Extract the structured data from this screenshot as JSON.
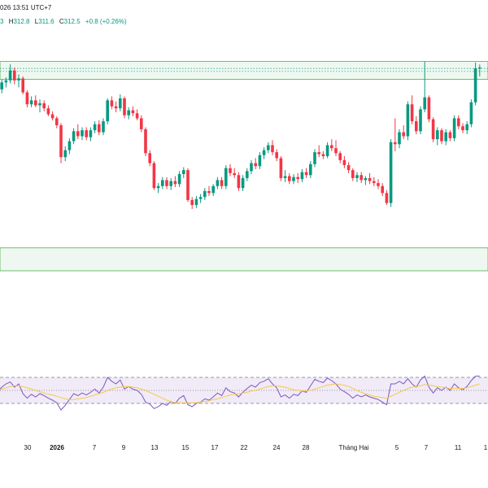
{
  "header": {
    "datetime": "026 13:51 UTC+7",
    "ohlc": [
      {
        "label": "",
        "value": "3"
      },
      {
        "label": "H",
        "value": "312.8"
      },
      {
        "label": "L",
        "value": "311.6"
      },
      {
        "label": "C",
        "value": "312.5"
      }
    ],
    "change": "+0.8 (+0.26%)"
  },
  "colors": {
    "up": "#089981",
    "down": "#f23645",
    "rsi_line": "#7e57c2",
    "rsi_ma": "#f7c948",
    "rsi_band": "#ede7f6",
    "zone_fill": "#e8f5e9",
    "zone_border": "#4caf50"
  },
  "chart_data": [
    {
      "type": "candlestick",
      "y_range": [
        285,
        316
      ],
      "zones": [
        {
          "from": 311.3,
          "to": 313.1
        },
        {
          "from": 292.1,
          "to": 294.4
        }
      ],
      "reference_lines": [
        312.1,
        312.4
      ],
      "x_ticks": [
        "30",
        "2026",
        "7",
        "9",
        "13",
        "15",
        "17",
        "22",
        "24",
        "28",
        "Tháng Hai",
        "5",
        "7",
        "11",
        "1"
      ],
      "candles": [
        [
          309.8,
          310.6,
          309.2,
          310.3
        ],
        [
          310.3,
          311.3,
          309.9,
          311.0
        ],
        [
          311.0,
          311.5,
          310.5,
          311.2
        ],
        [
          311.2,
          312.8,
          310.9,
          312.2
        ],
        [
          312.2,
          312.5,
          310.8,
          311.2
        ],
        [
          311.2,
          311.8,
          310.5,
          311.4
        ],
        [
          311.4,
          311.6,
          309.8,
          310.0
        ],
        [
          310.0,
          310.2,
          308.5,
          308.8
        ],
        [
          308.8,
          309.6,
          308.5,
          309.2
        ],
        [
          309.2,
          309.7,
          308.5,
          308.7
        ],
        [
          308.7,
          309.3,
          308.0,
          308.9
        ],
        [
          308.9,
          309.2,
          308.1,
          308.4
        ],
        [
          308.4,
          308.7,
          307.6,
          307.8
        ],
        [
          307.8,
          308.1,
          307.2,
          307.4
        ],
        [
          307.4,
          307.6,
          306.4,
          306.7
        ],
        [
          306.7,
          306.9,
          302.9,
          303.5
        ],
        [
          303.5,
          304.6,
          303.1,
          304.2
        ],
        [
          304.2,
          305.4,
          303.8,
          305.1
        ],
        [
          305.1,
          306.4,
          304.8,
          306.1
        ],
        [
          306.1,
          306.8,
          305.3,
          305.6
        ],
        [
          305.6,
          306.5,
          305.2,
          306.2
        ],
        [
          306.2,
          306.5,
          305.2,
          305.5
        ],
        [
          305.5,
          306.5,
          305.1,
          306.2
        ],
        [
          306.2,
          307.1,
          305.9,
          306.8
        ],
        [
          306.8,
          307.2,
          305.7,
          306.0
        ],
        [
          306.0,
          307.4,
          305.7,
          307.1
        ],
        [
          307.1,
          309.4,
          306.8,
          309.2
        ],
        [
          309.2,
          309.6,
          308.3,
          308.6
        ],
        [
          308.6,
          309.1,
          308.0,
          308.4
        ],
        [
          308.4,
          309.8,
          308.1,
          309.4
        ],
        [
          309.4,
          309.6,
          307.4,
          307.7
        ],
        [
          307.7,
          308.5,
          307.3,
          308.2
        ],
        [
          308.2,
          308.6,
          307.6,
          307.9
        ],
        [
          307.9,
          308.3,
          307.2,
          307.4
        ],
        [
          307.4,
          307.7,
          306.0,
          306.3
        ],
        [
          306.3,
          306.5,
          303.6,
          303.9
        ],
        [
          303.9,
          304.2,
          302.6,
          302.9
        ],
        [
          302.9,
          303.1,
          300.2,
          300.4
        ],
        [
          300.4,
          300.9,
          299.9,
          300.6
        ],
        [
          300.6,
          301.5,
          300.3,
          301.2
        ],
        [
          301.2,
          301.5,
          300.3,
          300.6
        ],
        [
          300.6,
          301.4,
          300.2,
          301.1
        ],
        [
          301.1,
          301.6,
          300.5,
          300.8
        ],
        [
          300.8,
          302.1,
          300.5,
          301.8
        ],
        [
          301.8,
          302.5,
          301.4,
          302.2
        ],
        [
          302.2,
          302.4,
          299.0,
          299.2
        ],
        [
          299.2,
          299.5,
          298.3,
          298.7
        ],
        [
          298.7,
          299.6,
          298.4,
          299.3
        ],
        [
          299.3,
          299.8,
          298.9,
          299.5
        ],
        [
          299.5,
          300.4,
          299.2,
          300.1
        ],
        [
          300.1,
          300.6,
          299.6,
          299.9
        ],
        [
          299.9,
          300.8,
          299.6,
          300.6
        ],
        [
          300.6,
          301.5,
          300.3,
          301.2
        ],
        [
          301.2,
          301.5,
          300.3,
          300.6
        ],
        [
          300.6,
          302.7,
          300.3,
          302.4
        ],
        [
          302.4,
          302.8,
          301.6,
          301.9
        ],
        [
          301.9,
          302.4,
          301.4,
          301.7
        ],
        [
          301.7,
          302.0,
          300.1,
          300.4
        ],
        [
          300.4,
          301.7,
          300.1,
          301.4
        ],
        [
          301.4,
          302.4,
          301.1,
          302.1
        ],
        [
          302.1,
          303.2,
          301.8,
          302.9
        ],
        [
          302.9,
          303.4,
          302.3,
          302.6
        ],
        [
          302.6,
          304.0,
          302.3,
          303.7
        ],
        [
          303.7,
          304.5,
          303.3,
          304.2
        ],
        [
          304.2,
          305.0,
          303.9,
          304.7
        ],
        [
          304.7,
          305.2,
          303.7,
          304.0
        ],
        [
          304.0,
          304.3,
          303.1,
          303.4
        ],
        [
          303.4,
          303.6,
          301.1,
          301.4
        ],
        [
          301.4,
          302.2,
          301.0,
          301.6
        ],
        [
          301.6,
          301.9,
          300.8,
          301.1
        ],
        [
          301.1,
          301.8,
          300.8,
          301.5
        ],
        [
          301.5,
          301.9,
          300.9,
          301.3
        ],
        [
          301.3,
          302.3,
          301.0,
          302.0
        ],
        [
          302.0,
          302.4,
          301.4,
          301.7
        ],
        [
          301.7,
          303.1,
          301.4,
          302.8
        ],
        [
          302.8,
          304.3,
          302.5,
          304.0
        ],
        [
          304.0,
          304.7,
          303.5,
          303.8
        ],
        [
          303.8,
          304.1,
          303.3,
          303.6
        ],
        [
          303.6,
          305.0,
          303.4,
          304.7
        ],
        [
          304.7,
          305.3,
          304.1,
          304.4
        ],
        [
          304.4,
          305.2,
          303.6,
          303.9
        ],
        [
          303.9,
          304.1,
          302.9,
          303.2
        ],
        [
          303.2,
          303.6,
          302.4,
          302.7
        ],
        [
          302.7,
          303.0,
          301.9,
          302.2
        ],
        [
          302.2,
          302.4,
          301.1,
          301.4
        ],
        [
          301.4,
          302.0,
          301.0,
          301.7
        ],
        [
          301.7,
          302.0,
          300.9,
          301.2
        ],
        [
          301.2,
          301.6,
          300.7,
          301.4
        ],
        [
          301.4,
          301.9,
          300.8,
          301.1
        ],
        [
          301.1,
          301.5,
          300.6,
          300.9
        ],
        [
          300.9,
          301.3,
          300.3,
          300.6
        ],
        [
          300.6,
          300.9,
          299.6,
          299.9
        ],
        [
          299.9,
          300.2,
          298.7,
          298.9
        ],
        [
          298.9,
          305.3,
          298.5,
          305.0
        ],
        [
          305.0,
          307.4,
          304.1,
          304.8
        ],
        [
          304.8,
          306.3,
          304.4,
          306.0
        ],
        [
          306.0,
          306.7,
          305.3,
          305.6
        ],
        [
          305.6,
          309.1,
          305.2,
          308.8
        ],
        [
          308.8,
          309.7,
          306.8,
          307.1
        ],
        [
          307.1,
          307.6,
          305.8,
          306.1
        ],
        [
          306.1,
          308.6,
          305.8,
          308.3
        ],
        [
          308.3,
          313.1,
          308.0,
          309.5
        ],
        [
          309.5,
          309.7,
          307.0,
          307.3
        ],
        [
          307.3,
          307.5,
          305.0,
          305.3
        ],
        [
          305.3,
          306.5,
          304.7,
          306.2
        ],
        [
          306.2,
          306.4,
          304.8,
          305.1
        ],
        [
          305.1,
          306.3,
          304.7,
          306.0
        ],
        [
          306.0,
          306.2,
          305.1,
          305.4
        ],
        [
          305.4,
          307.7,
          305.1,
          307.4
        ],
        [
          307.4,
          307.7,
          306.3,
          306.6
        ],
        [
          306.6,
          306.9,
          305.9,
          306.2
        ],
        [
          306.2,
          307.1,
          305.8,
          306.8
        ],
        [
          306.8,
          309.3,
          306.5,
          309.0
        ],
        [
          309.0,
          313.0,
          308.7,
          312.4
        ],
        [
          312.4,
          312.8,
          311.6,
          312.5
        ]
      ]
    },
    {
      "type": "line",
      "y_range": [
        0,
        100
      ],
      "levels": [
        70,
        50,
        30
      ],
      "series": [
        {
          "values": [
            48,
            55,
            60,
            63,
            55,
            60,
            45,
            38,
            44,
            40,
            45,
            42,
            38,
            35,
            31,
            20,
            27,
            36,
            45,
            42,
            46,
            43,
            47,
            52,
            46,
            55,
            70,
            64,
            60,
            66,
            52,
            56,
            52,
            50,
            44,
            32,
            29,
            22,
            25,
            30,
            27,
            33,
            30,
            38,
            42,
            28,
            25,
            30,
            32,
            37,
            35,
            40,
            46,
            42,
            54,
            48,
            46,
            40,
            47,
            53,
            58,
            55,
            62,
            64,
            68,
            60,
            54,
            40,
            43,
            38,
            44,
            42,
            49,
            47,
            57,
            67,
            64,
            62,
            69,
            65,
            60,
            52,
            48,
            44,
            38,
            43,
            40,
            43,
            40,
            38,
            36,
            32,
            28,
            60,
            60,
            64,
            60,
            68,
            60,
            55,
            66,
            72,
            55,
            46,
            54,
            50,
            55,
            50,
            60,
            54,
            51,
            56,
            65,
            72,
            72
          ]
        },
        {
          "values": [
            50,
            52,
            54,
            56,
            57,
            57,
            56,
            54,
            52,
            50,
            48,
            46,
            44,
            43,
            41,
            39,
            37,
            36,
            36,
            37,
            38,
            39,
            41,
            43,
            45,
            47,
            50,
            52,
            54,
            55,
            56,
            56,
            55,
            54,
            52,
            50,
            47,
            44,
            41,
            38,
            35,
            33,
            31,
            31,
            31,
            31,
            31,
            31,
            32,
            33,
            34,
            36,
            37,
            39,
            41,
            43,
            44,
            45,
            46,
            47,
            49,
            50,
            52,
            54,
            56,
            57,
            57,
            56,
            55,
            53,
            51,
            50,
            49,
            49,
            50,
            52,
            54,
            56,
            58,
            59,
            60,
            59,
            58,
            56,
            53,
            50,
            47,
            45,
            43,
            41,
            40,
            39,
            38,
            41,
            44,
            47,
            50,
            53,
            55,
            56,
            57,
            59,
            58,
            57,
            56,
            55,
            54,
            53,
            53,
            53,
            53,
            54,
            56,
            58,
            60
          ]
        }
      ]
    }
  ]
}
